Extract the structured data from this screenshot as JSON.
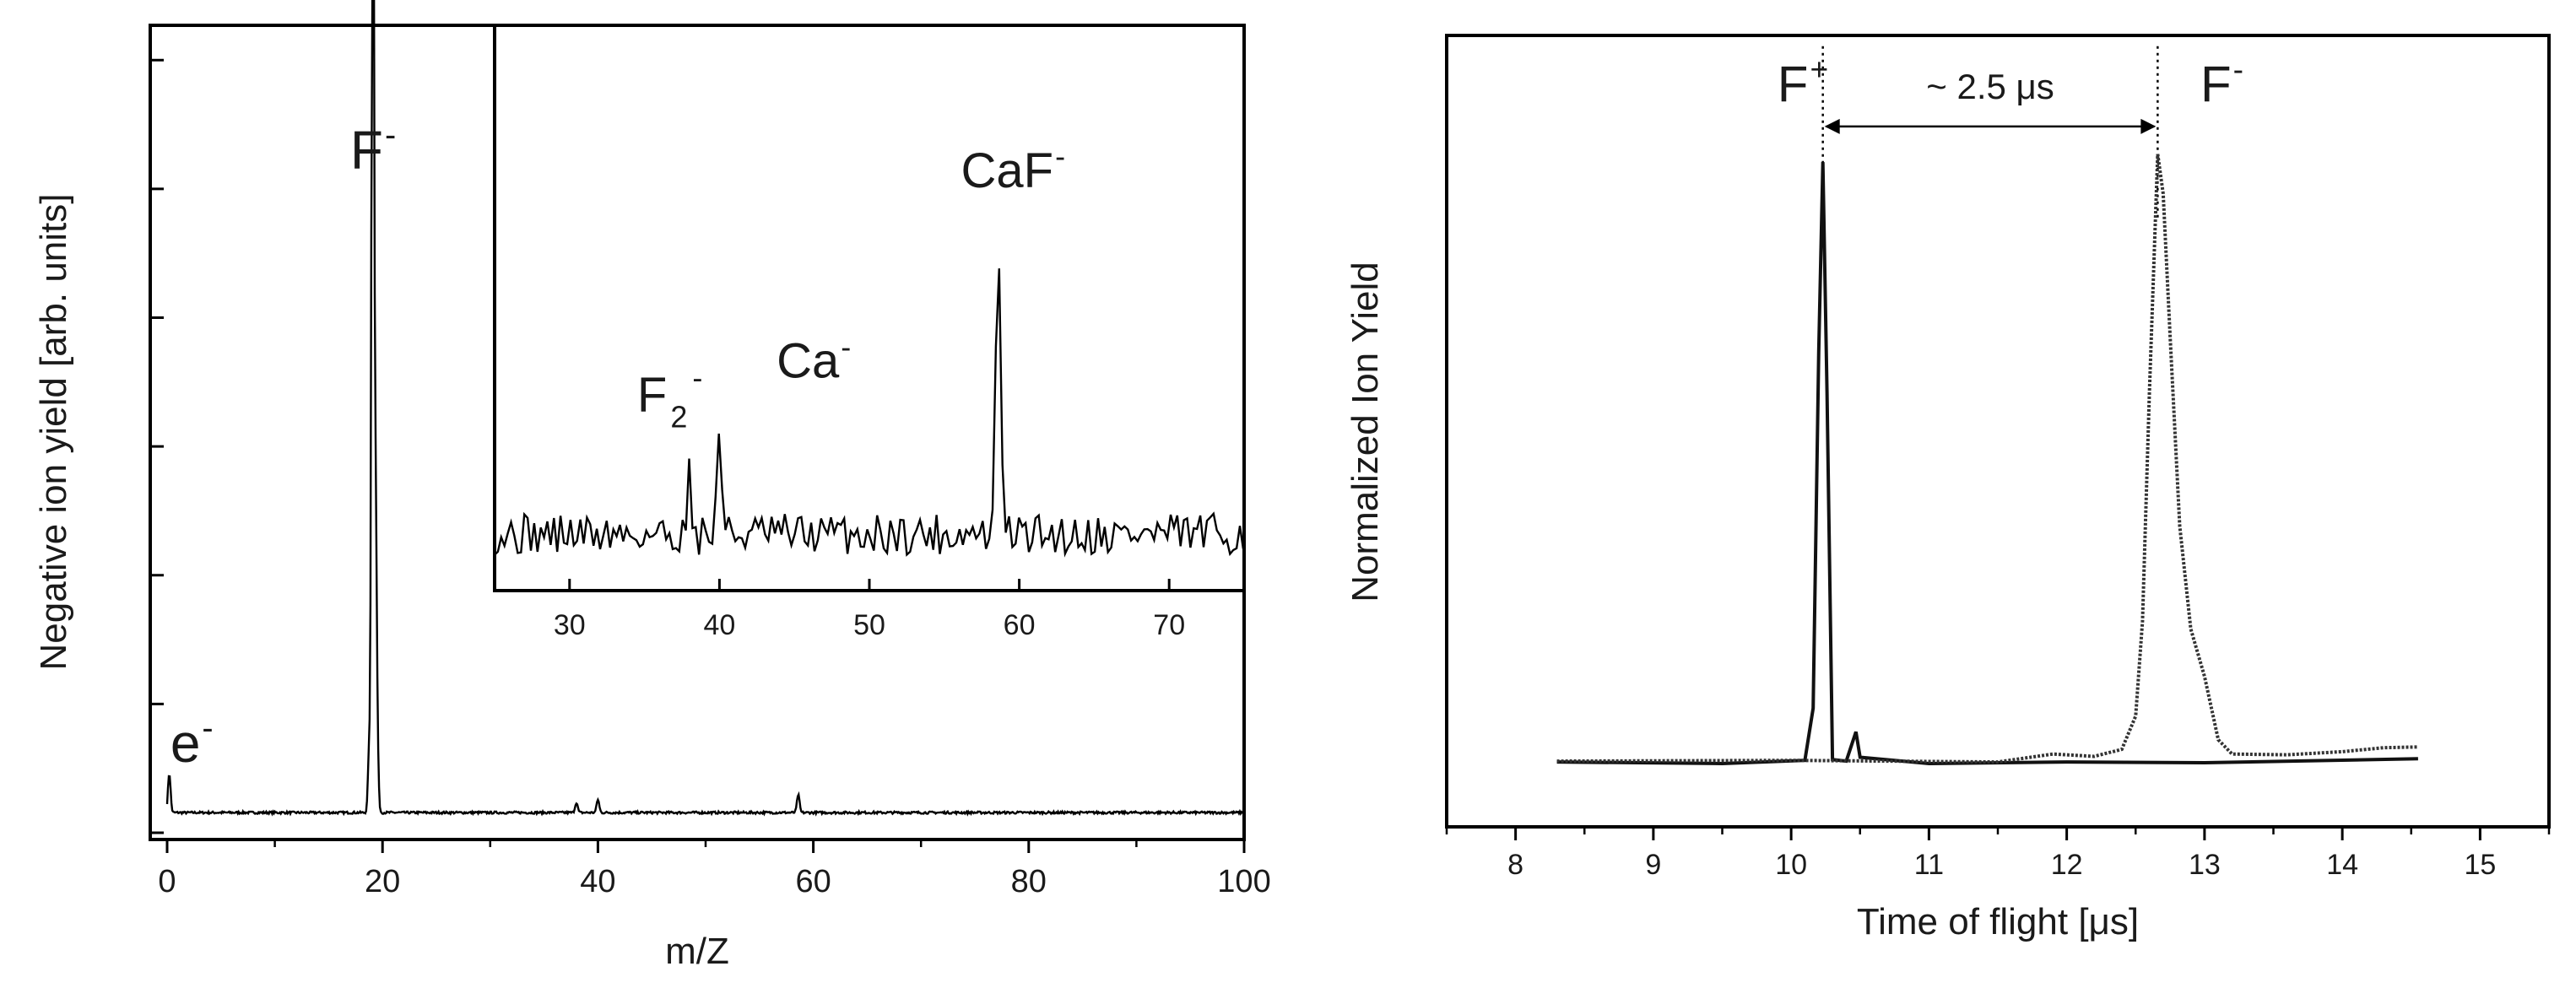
{
  "chart_data": [
    {
      "type": "line",
      "title": "",
      "xlabel": "m/Z",
      "ylabel": "Negative ion yield [arb. units]",
      "xlim": [
        -2,
        100
      ],
      "ylim": [
        0,
        100
      ],
      "x_ticks": [
        0,
        20,
        40,
        60,
        80,
        100
      ],
      "y_tick_labels_shown": false,
      "grid": false,
      "series": [
        {
          "baseline": 1.5,
          "noise": 0.3,
          "peaks": [
            {
              "x": 0.2,
              "y": 6.5
            },
            {
              "x": 18.8,
              "y": 12
            },
            {
              "x": 19.0,
              "y": 80
            },
            {
              "x": 19.15,
              "y": 98
            },
            {
              "x": 19.3,
              "y": 50
            },
            {
              "x": 19.5,
              "y": 10
            },
            {
              "x": 38.0,
              "y": 2.8
            },
            {
              "x": 40.0,
              "y": 3.2
            },
            {
              "x": 58.6,
              "y": 3.8
            }
          ]
        }
      ],
      "annotations": [
        {
          "text": "F",
          "sup": "-",
          "x": 17,
          "y": 84
        },
        {
          "text": "e",
          "sup": "-",
          "x": 0.3,
          "y": 8
        }
      ],
      "inset": {
        "xlim": [
          25,
          75
        ],
        "x_ticks": [
          30,
          40,
          50,
          60,
          70
        ],
        "baseline": 30,
        "peaks": [
          {
            "x": 38.0,
            "y": 62
          },
          {
            "x": 40.0,
            "y": 88
          },
          {
            "x": 58.6,
            "y": 190
          }
        ],
        "annotations": [
          {
            "text": "F",
            "sub": "2",
            "sup": "-",
            "x": 36.2,
            "y": 95
          },
          {
            "text": "Ca",
            "sup": "-",
            "x": 45.5,
            "y": 113
          },
          {
            "text": "CaF",
            "sup": "-",
            "x": 57.8,
            "y": 214
          }
        ]
      }
    },
    {
      "type": "line",
      "title": "",
      "xlabel": "Time of flight [μs]",
      "ylabel": "Normalized Ion Yield",
      "xlim": [
        7.5,
        15.5
      ],
      "ylim": [
        0,
        100
      ],
      "x_ticks": [
        8,
        9,
        10,
        11,
        12,
        13,
        14,
        15
      ],
      "y_tick_labels_shown": false,
      "grid": false,
      "series": [
        {
          "label": "F+",
          "style": "solid",
          "points": [
            [
              8.3,
              8.2
            ],
            [
              9.5,
              8
            ],
            [
              10.1,
              8.4
            ],
            [
              10.16,
              15
            ],
            [
              10.2,
              60
            ],
            [
              10.23,
              84
            ],
            [
              10.26,
              55
            ],
            [
              10.3,
              8.5
            ],
            [
              10.4,
              8.3
            ],
            [
              10.47,
              12
            ],
            [
              10.5,
              8.8
            ],
            [
              11,
              8
            ],
            [
              12,
              8.2
            ],
            [
              13,
              8.1
            ],
            [
              14.55,
              8.6
            ]
          ]
        },
        {
          "label": "F-",
          "style": "dotted",
          "points": [
            [
              8.3,
              8.3
            ],
            [
              10,
              8.4
            ],
            [
              11.5,
              8.2
            ],
            [
              11.9,
              9.2
            ],
            [
              12.2,
              8.9
            ],
            [
              12.4,
              9.8
            ],
            [
              12.5,
              14
            ],
            [
              12.55,
              26
            ],
            [
              12.6,
              55
            ],
            [
              12.66,
              85
            ],
            [
              12.7,
              80
            ],
            [
              12.75,
              62
            ],
            [
              12.82,
              38
            ],
            [
              12.9,
              25
            ],
            [
              13,
              19
            ],
            [
              13.1,
              11
            ],
            [
              13.2,
              9.2
            ],
            [
              13.6,
              9.1
            ],
            [
              14,
              9.5
            ],
            [
              14.3,
              10
            ],
            [
              14.55,
              10.1
            ]
          ]
        }
      ],
      "markers": [
        10.23,
        12.66
      ],
      "interval_label": "~ 2.5 μs",
      "annotations": [
        {
          "text": "F",
          "sup": "+",
          "x": 9.9,
          "y": 94
        },
        {
          "text": "F",
          "sup": "-",
          "x": 12.97,
          "y": 94
        }
      ]
    }
  ]
}
